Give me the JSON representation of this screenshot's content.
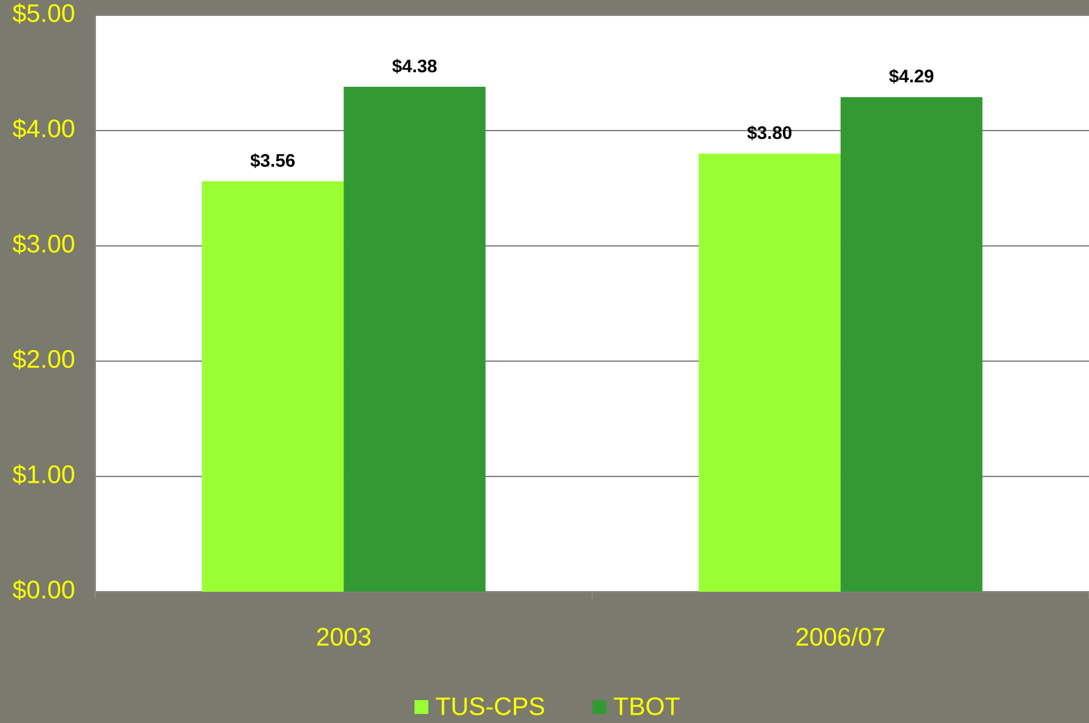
{
  "chart_data": {
    "type": "bar",
    "categories": [
      "2003",
      "2006/07"
    ],
    "series": [
      {
        "name": "TUS-CPS",
        "color": "#99ff33",
        "values": [
          3.56,
          3.8
        ],
        "value_labels": [
          "$3.56",
          "$3.80"
        ]
      },
      {
        "name": "TBOT",
        "color": "#339933",
        "values": [
          4.38,
          4.29
        ],
        "value_labels": [
          "$4.38",
          "$4.29"
        ]
      }
    ],
    "ylim": [
      0,
      5
    ],
    "yticks": [
      {
        "value": 0,
        "label": "$0.00"
      },
      {
        "value": 1,
        "label": "$1.00"
      },
      {
        "value": 2,
        "label": "$2.00"
      },
      {
        "value": 3,
        "label": "$3.00"
      },
      {
        "value": 4,
        "label": "$4.00"
      },
      {
        "value": 5,
        "label": "$5.00"
      }
    ],
    "grid": true,
    "legend": "bottom"
  }
}
